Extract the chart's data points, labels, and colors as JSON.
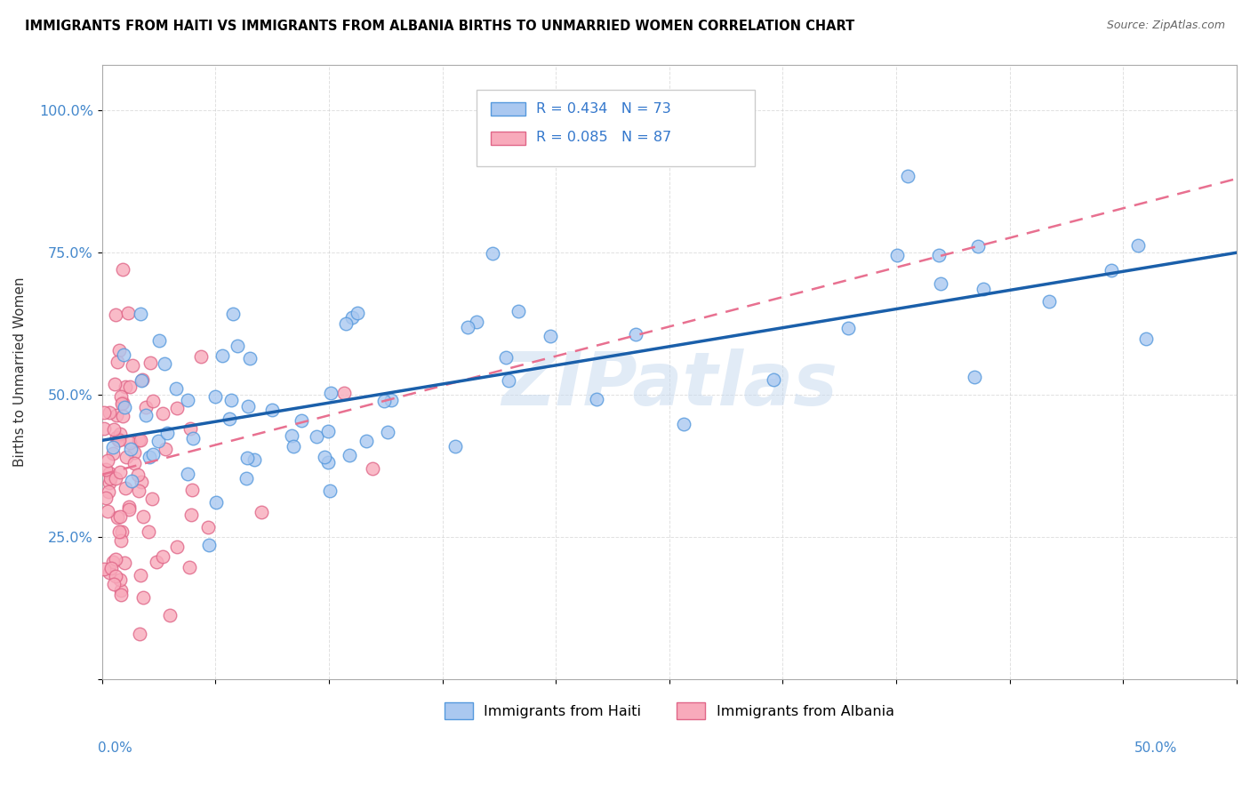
{
  "title": "IMMIGRANTS FROM HAITI VS IMMIGRANTS FROM ALBANIA BIRTHS TO UNMARRIED WOMEN CORRELATION CHART",
  "source": "Source: ZipAtlas.com",
  "ylabel": "Births to Unmarried Women",
  "watermark": "ZIPatlas",
  "haiti_color": "#aac8f0",
  "haiti_edge_color": "#5599dd",
  "albania_color": "#f8aabb",
  "albania_edge_color": "#e06688",
  "haiti_line_color": "#1a5faa",
  "albania_line_color": "#e87090",
  "background_color": "#ffffff",
  "grid_color": "#cccccc",
  "title_color": "#000000",
  "title_fontsize": 10.5,
  "ytick_color": "#4488cc",
  "source_color": "#666666"
}
